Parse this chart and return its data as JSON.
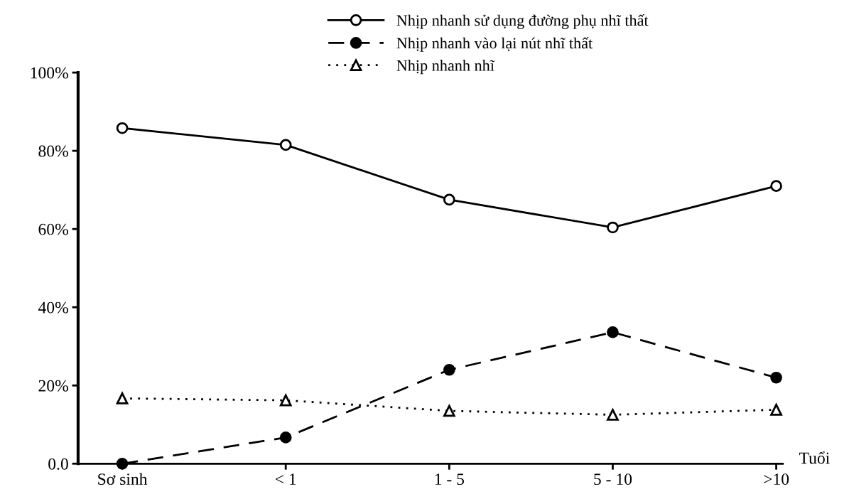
{
  "chart_data": {
    "type": "line",
    "xlabel": "Tuổi",
    "categories": [
      "Sơ sinh",
      "< 1",
      "1 - 5",
      "5 - 10",
      ">10"
    ],
    "series": [
      {
        "name": "Nhịp nhanh sử dụng đường phụ nhĩ thất",
        "color": "#000000",
        "marker": "circle",
        "line_style": "solid",
        "values": [
          85.8,
          81.5,
          67.5,
          60.4,
          71
        ]
      },
      {
        "name": "Nhịp nhanh vào lại nút nhĩ thất",
        "color": "#000000",
        "marker": "circle",
        "line_style": "dashed",
        "values": [
          0,
          6.7,
          24,
          33.6,
          22
        ]
      },
      {
        "name": "Nhịp nhanh nhĩ",
        "color": "#000000",
        "marker": "triangle",
        "line_style": "dotted",
        "values": [
          16.7,
          16.2,
          13.5,
          12.5,
          13.8
        ]
      }
    ],
    "ylim": [
      0,
      100
    ],
    "yticks": [
      {
        "value": 0,
        "label": "0.0"
      },
      {
        "value": 20,
        "label": "20%"
      },
      {
        "value": 40,
        "label": "40%"
      },
      {
        "value": 60,
        "label": "60%"
      },
      {
        "value": 80,
        "label": "80%"
      },
      {
        "value": 100,
        "label": "100%"
      }
    ],
    "grid": false,
    "legend": "top right"
  }
}
